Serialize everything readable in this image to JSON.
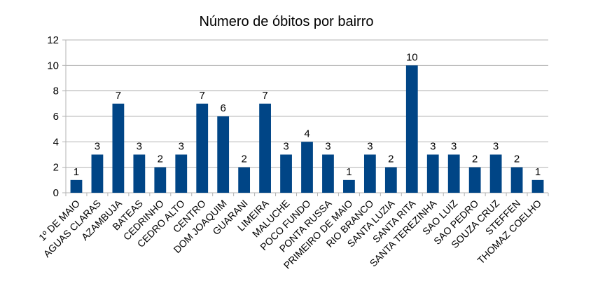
{
  "chart_data": {
    "type": "bar",
    "title": "Número de óbitos por bairro",
    "xlabel": "",
    "ylabel": "",
    "ylim": [
      0,
      12
    ],
    "yticks": [
      0,
      2,
      4,
      6,
      8,
      10,
      12
    ],
    "grid": true,
    "legend": "none",
    "bar_color": "#004586",
    "categories": [
      "1º DE MAIO",
      "AGUAS CLARAS",
      "AZAMBUJA",
      "BATEAS",
      "CEDRINHO",
      "CEDRO ALTO",
      "CENTRO",
      "DOM JOAQUIM",
      "GUARANI",
      "LIMEIRA",
      "MALUCHE",
      "POCO FUNDO",
      "PONTA RUSSA",
      "PRIMEIRO DE MAIO",
      "RIO BRANCO",
      "SANTA LUZIA",
      "SANTA RITA",
      "SANTA TEREZINHA",
      "SAO LUIZ",
      "SAO PEDRO",
      "SOUZA CRUZ",
      "STEFFEN",
      "THOMAZ COELHO"
    ],
    "values": [
      1,
      3,
      7,
      3,
      2,
      3,
      7,
      6,
      2,
      7,
      3,
      4,
      3,
      1,
      3,
      2,
      10,
      3,
      3,
      2,
      3,
      2,
      1
    ]
  }
}
